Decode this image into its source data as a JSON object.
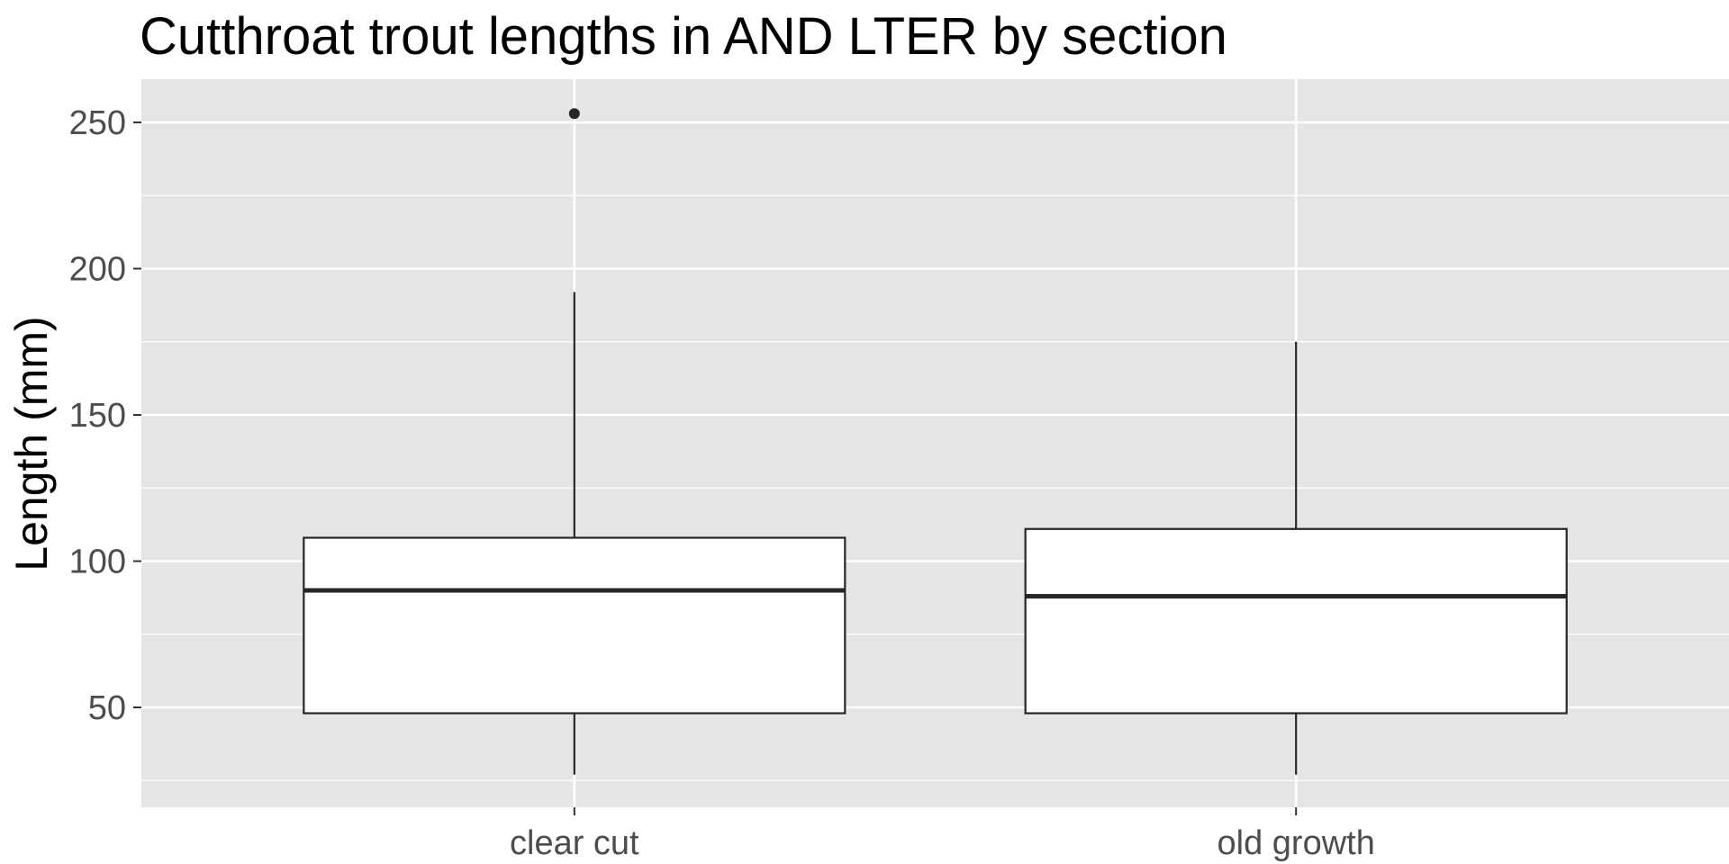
{
  "chart_data": {
    "type": "boxplot",
    "title": "Cutthroat trout lengths in AND LTER by section",
    "xlabel": "",
    "ylabel": "Length (mm)",
    "categories": [
      "clear cut",
      "old growth"
    ],
    "boxes": [
      {
        "category": "clear cut",
        "whisker_low": 27,
        "q1": 48,
        "median": 90,
        "q3": 108,
        "whisker_high": 192,
        "outliers": [
          253
        ]
      },
      {
        "category": "old growth",
        "whisker_low": 27,
        "q1": 48,
        "median": 88,
        "q3": 111,
        "whisker_high": 175,
        "outliers": []
      }
    ],
    "yticks": [
      50,
      100,
      150,
      200,
      250
    ],
    "ylim": [
      15,
      262
    ],
    "grid": true,
    "colors": {
      "panel_background": "#e5e5e5",
      "grid": "#ffffff",
      "box_fill": "#ffffff",
      "box_stroke": "#262626",
      "tick_label": "#4d4d4d"
    }
  }
}
